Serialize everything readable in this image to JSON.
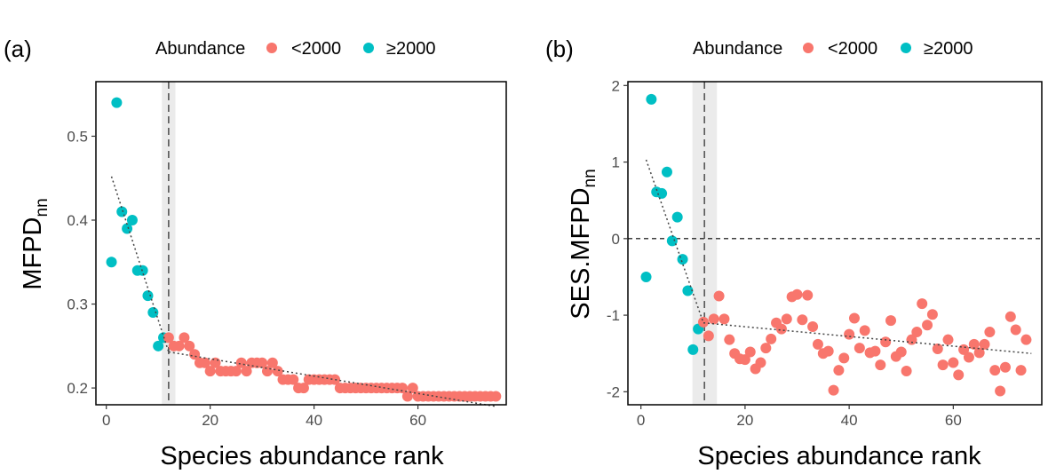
{
  "legend": {
    "title": "Abundance",
    "items": [
      {
        "label": "<2000",
        "color": "#F8766D"
      },
      {
        "label": "≥2000",
        "color": "#00BFC4"
      }
    ]
  },
  "chart_data": [
    {
      "type": "scatter",
      "panel_label": "(a)",
      "xlabel": "Species abundance rank",
      "ylabel_main": "MFPD",
      "ylabel_sub": "nn",
      "xlim": [
        -2,
        77
      ],
      "ylim": [
        0.18,
        0.565
      ],
      "xticks": [
        0,
        20,
        40,
        60
      ],
      "yticks": [
        0.2,
        0.3,
        0.4,
        0.5
      ],
      "ytick_labels": [
        "0.2",
        "0.3",
        "0.4",
        "0.5"
      ],
      "breakpoint": 12,
      "breakpoint_band": [
        10.7,
        13.3
      ],
      "hline": null,
      "fit_left": [
        [
          1,
          0.452
        ],
        [
          12,
          0.243
        ]
      ],
      "fit_right": [
        [
          12,
          0.243
        ],
        [
          75,
          0.178
        ]
      ],
      "series": [
        {
          "color_key": "≥2000",
          "x": [
            1,
            2,
            3,
            4,
            5,
            6,
            7,
            8,
            9,
            10,
            11
          ],
          "y": [
            0.35,
            0.54,
            0.41,
            0.39,
            0.4,
            0.34,
            0.34,
            0.31,
            0.29,
            0.25,
            0.26
          ]
        },
        {
          "color_key": "<2000",
          "x": [
            12,
            13,
            14,
            15,
            16,
            17,
            18,
            19,
            20,
            21,
            22,
            23,
            24,
            25,
            26,
            27,
            28,
            29,
            30,
            31,
            32,
            33,
            34,
            35,
            36,
            37,
            38,
            39,
            40,
            41,
            42,
            43,
            44,
            45,
            46,
            47,
            48,
            49,
            50,
            51,
            52,
            53,
            54,
            55,
            56,
            57,
            58,
            59,
            60,
            61,
            62,
            63,
            64,
            65,
            66,
            67,
            68,
            69,
            70,
            71,
            72,
            73,
            74,
            75
          ],
          "y": [
            0.26,
            0.25,
            0.25,
            0.26,
            0.25,
            0.24,
            0.23,
            0.23,
            0.22,
            0.23,
            0.22,
            0.22,
            0.22,
            0.22,
            0.23,
            0.22,
            0.23,
            0.23,
            0.23,
            0.22,
            0.23,
            0.22,
            0.21,
            0.21,
            0.21,
            0.2,
            0.2,
            0.21,
            0.21,
            0.21,
            0.21,
            0.21,
            0.21,
            0.2,
            0.2,
            0.2,
            0.2,
            0.2,
            0.2,
            0.2,
            0.2,
            0.2,
            0.2,
            0.2,
            0.2,
            0.2,
            0.19,
            0.2,
            0.19,
            0.19,
            0.19,
            0.19,
            0.19,
            0.19,
            0.19,
            0.19,
            0.19,
            0.19,
            0.19,
            0.19,
            0.19,
            0.19,
            0.19,
            0.19
          ]
        }
      ]
    },
    {
      "type": "scatter",
      "panel_label": "(b)",
      "xlabel": "Species abundance rank",
      "ylabel_main": "SES.MFPD",
      "ylabel_sub": "nn",
      "xlim": [
        -2.5,
        77
      ],
      "ylim": [
        -2.17,
        2.05
      ],
      "xticks": [
        0,
        20,
        40,
        60
      ],
      "yticks": [
        -2,
        -1,
        0,
        1,
        2
      ],
      "ytick_labels": [
        "-2",
        "-1",
        "0",
        "1",
        "2"
      ],
      "breakpoint": 12.2,
      "breakpoint_band": [
        9.9,
        14.6
      ],
      "hline": 0,
      "fit_left": [
        [
          1,
          1.03
        ],
        [
          12,
          -1.1
        ]
      ],
      "fit_right": [
        [
          12,
          -1.1
        ],
        [
          75,
          -1.5
        ]
      ],
      "series": [
        {
          "color_key": "≥2000",
          "x": [
            1,
            2,
            3,
            4,
            5,
            6,
            7,
            8,
            9,
            10,
            11
          ],
          "y": [
            -0.5,
            1.82,
            0.61,
            0.59,
            0.87,
            -0.03,
            0.28,
            -0.27,
            -0.68,
            -1.45,
            -1.18
          ]
        },
        {
          "color_key": "<2000",
          "x": [
            12,
            13,
            14,
            15,
            16,
            17,
            18,
            19,
            20,
            21,
            22,
            23,
            24,
            25,
            26,
            27,
            28,
            29,
            30,
            31,
            32,
            33,
            34,
            35,
            36,
            37,
            38,
            39,
            40,
            41,
            42,
            43,
            44,
            45,
            46,
            47,
            48,
            49,
            50,
            51,
            52,
            53,
            54,
            55,
            56,
            57,
            58,
            59,
            60,
            61,
            62,
            63,
            64,
            65,
            66,
            67,
            68,
            69,
            70,
            71,
            72,
            73,
            74
          ],
          "y": [
            -1.09,
            -1.27,
            -1.05,
            -0.75,
            -1.05,
            -1.32,
            -1.5,
            -1.57,
            -1.58,
            -1.48,
            -1.7,
            -1.62,
            -1.43,
            -1.31,
            -1.1,
            -1.18,
            -1.05,
            -0.76,
            -0.73,
            -1.06,
            -0.74,
            -1.15,
            -1.38,
            -1.5,
            -1.47,
            -1.98,
            -1.72,
            -1.56,
            -1.25,
            -1.04,
            -1.43,
            -1.2,
            -1.49,
            -1.47,
            -1.65,
            -1.35,
            -1.07,
            -1.54,
            -1.48,
            -1.73,
            -1.32,
            -1.22,
            -0.85,
            -1.13,
            -0.99,
            -1.44,
            -1.65,
            -1.32,
            -1.62,
            -1.78,
            -1.45,
            -1.55,
            -1.38,
            -1.49,
            -1.38,
            -1.22,
            -1.72,
            -1.99,
            -1.68,
            -1.02,
            -1.19,
            -1.72,
            -1.32
          ]
        }
      ]
    }
  ]
}
